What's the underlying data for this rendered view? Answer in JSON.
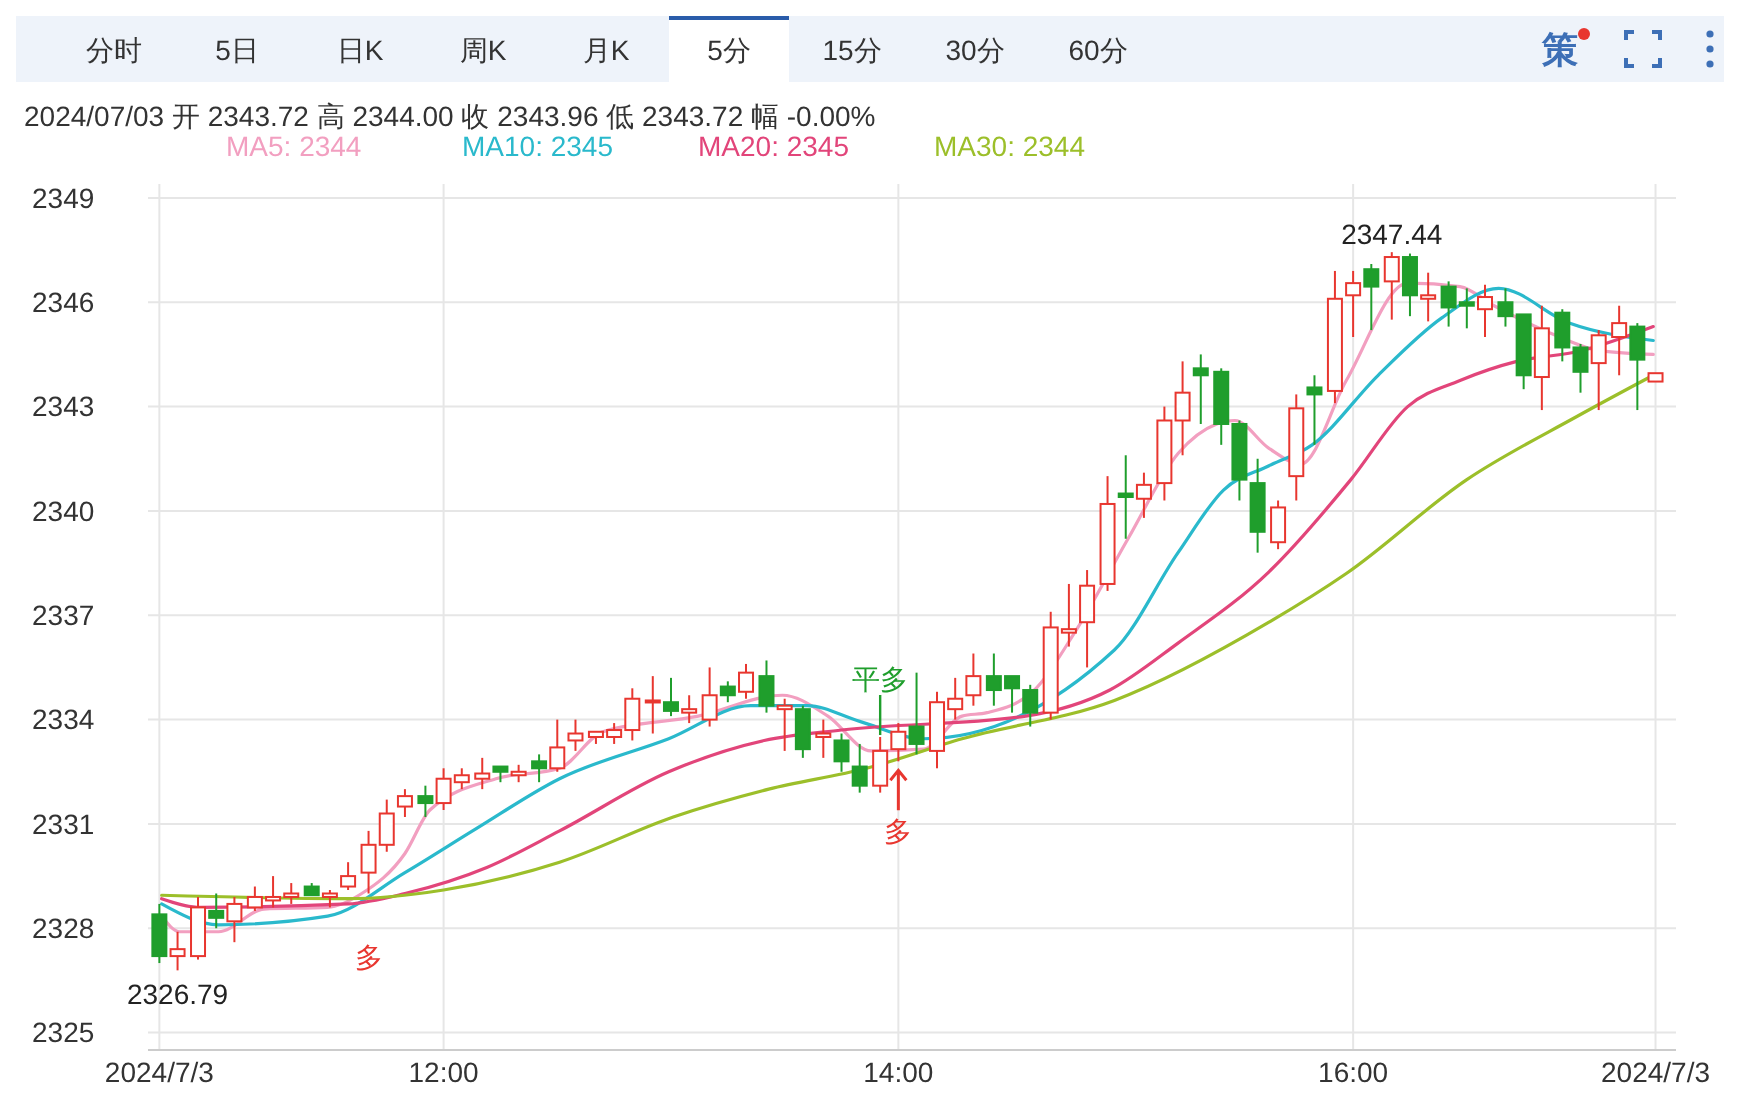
{
  "chart_data": {
    "type": "candlestick",
    "legend": "top left",
    "grid": true,
    "xlim": [
      10.7,
      17.42
    ],
    "ylim": [
      2324.5,
      2349.4
    ],
    "xticks": [
      {
        "value": 10.75,
        "label": "2024/7/3"
      },
      {
        "value": 12,
        "label": "12:00"
      },
      {
        "value": 14,
        "label": "14:00"
      },
      {
        "value": 16,
        "label": "16:00"
      },
      {
        "value": 17.33,
        "label": "2024/7/3"
      }
    ],
    "yticks": [
      2325,
      2328,
      2331,
      2334,
      2337,
      2340,
      2343,
      2346,
      2349
    ],
    "annotations": [
      "分时",
      "5日",
      "日K",
      "周K",
      "月K",
      "5分",
      "15分",
      "30分",
      "60分",
      "策",
      "2024/07/03 开 2343.72 高 2344.00 收 2343.96 低 2343.72 幅 -0.00%",
      {
        "text": "2347.44",
        "x": 16.17,
        "y": 2347.44
      },
      {
        "text": "2326.79",
        "x": 10.83,
        "y": 2326.79
      },
      {
        "text": "多",
        "x": 11.67,
        "y": 2329.0
      },
      {
        "text": "平多",
        "x": 13.92,
        "y": 2333.5
      },
      {
        "text": "多",
        "x": 14.0,
        "y": 2332.6
      }
    ],
    "series": [
      {
        "x": [
          10.75,
          10.83,
          10.92,
          11,
          11.08,
          11.17,
          11.25,
          11.33,
          11.42,
          11.5,
          11.58,
          11.67,
          11.75,
          11.83,
          11.92,
          12,
          12.08,
          12.17,
          12.25,
          12.33,
          12.42,
          12.5,
          12.58,
          12.67,
          12.75,
          12.83,
          12.92,
          13,
          13.08,
          13.17,
          13.25,
          13.33,
          13.42,
          13.5,
          13.58,
          13.67,
          13.75,
          13.83,
          13.92,
          14,
          14.08,
          14.17,
          14.25,
          14.33,
          14.42,
          14.5,
          14.58,
          14.67,
          14.75,
          14.83,
          14.92,
          15,
          15.08,
          15.17,
          15.25,
          15.33,
          15.42,
          15.5,
          15.58,
          15.67,
          15.75,
          15.83,
          15.92,
          16,
          16.08,
          16.17,
          16.25,
          16.33,
          16.42,
          16.5,
          16.58,
          16.67,
          16.75,
          16.83,
          16.92,
          17,
          17.08,
          17.17,
          17.25,
          17.33
        ],
        "ohlc": [
          [
            2328.4,
            2328.7,
            2327.0,
            2327.2
          ],
          [
            2327.2,
            2327.9,
            2326.79,
            2327.4
          ],
          [
            2327.2,
            2328.9,
            2327.1,
            2328.6
          ],
          [
            2328.5,
            2329.0,
            2328.0,
            2328.3
          ],
          [
            2328.2,
            2328.9,
            2327.6,
            2328.7
          ],
          [
            2328.6,
            2329.2,
            2328.5,
            2328.9
          ],
          [
            2328.8,
            2329.5,
            2328.6,
            2328.9
          ],
          [
            2328.9,
            2329.3,
            2328.7,
            2329.0
          ],
          [
            2329.2,
            2329.3,
            2328.9,
            2328.95
          ],
          [
            2328.9,
            2329.1,
            2328.6,
            2329.0
          ],
          [
            2329.2,
            2329.9,
            2329.1,
            2329.5
          ],
          [
            2329.6,
            2330.8,
            2329.0,
            2330.4
          ],
          [
            2330.4,
            2331.7,
            2330.2,
            2331.3
          ],
          [
            2331.5,
            2332.0,
            2331.2,
            2331.8
          ],
          [
            2331.8,
            2332.1,
            2331.2,
            2331.6
          ],
          [
            2331.6,
            2332.6,
            2331.4,
            2332.3
          ],
          [
            2332.2,
            2332.6,
            2332.0,
            2332.4
          ],
          [
            2332.3,
            2332.9,
            2332.0,
            2332.45
          ],
          [
            2332.65,
            2332.7,
            2332.2,
            2332.5
          ],
          [
            2332.4,
            2332.7,
            2332.2,
            2332.5
          ],
          [
            2332.8,
            2333.0,
            2332.2,
            2332.6
          ],
          [
            2332.6,
            2334.0,
            2332.5,
            2333.2
          ],
          [
            2333.4,
            2334.0,
            2333.1,
            2333.6
          ],
          [
            2333.5,
            2333.7,
            2333.3,
            2333.65
          ],
          [
            2333.5,
            2333.9,
            2333.3,
            2333.7
          ],
          [
            2333.7,
            2334.9,
            2333.4,
            2334.6
          ],
          [
            2334.5,
            2335.25,
            2333.6,
            2334.55
          ],
          [
            2334.5,
            2335.2,
            2334.1,
            2334.25
          ],
          [
            2334.2,
            2334.7,
            2333.9,
            2334.3
          ],
          [
            2334.0,
            2335.5,
            2333.8,
            2334.7
          ],
          [
            2334.95,
            2335.1,
            2334.5,
            2334.7
          ],
          [
            2334.8,
            2335.6,
            2334.6,
            2335.35
          ],
          [
            2335.25,
            2335.7,
            2334.2,
            2334.4
          ],
          [
            2334.3,
            2334.6,
            2333.1,
            2334.4
          ],
          [
            2334.3,
            2334.4,
            2332.9,
            2333.15
          ],
          [
            2333.5,
            2334.0,
            2332.9,
            2333.6
          ],
          [
            2333.4,
            2333.6,
            2332.5,
            2332.8
          ],
          [
            2332.65,
            2333.3,
            2331.9,
            2332.1
          ],
          [
            2332.1,
            2333.5,
            2331.9,
            2333.1
          ],
          [
            2333.15,
            2333.9,
            2332.8,
            2333.65
          ],
          [
            2333.8,
            2335.35,
            2333.0,
            2333.3
          ],
          [
            2333.1,
            2334.8,
            2332.6,
            2334.5
          ],
          [
            2334.3,
            2335.2,
            2334.0,
            2334.6
          ],
          [
            2334.7,
            2335.9,
            2334.4,
            2335.25
          ],
          [
            2335.25,
            2335.9,
            2334.4,
            2334.85
          ],
          [
            2335.25,
            2335.3,
            2334.2,
            2334.9
          ],
          [
            2334.85,
            2335.0,
            2333.8,
            2334.2
          ],
          [
            2334.2,
            2337.1,
            2334.0,
            2336.65
          ],
          [
            2336.5,
            2337.9,
            2336.1,
            2336.6
          ],
          [
            2336.8,
            2338.3,
            2335.5,
            2337.85
          ],
          [
            2337.9,
            2341.0,
            2337.7,
            2340.2
          ],
          [
            2340.5,
            2341.6,
            2339.2,
            2340.4
          ],
          [
            2340.35,
            2341.1,
            2339.8,
            2340.75
          ],
          [
            2340.8,
            2343.0,
            2340.3,
            2342.6
          ],
          [
            2342.6,
            2344.3,
            2341.6,
            2343.4
          ],
          [
            2344.1,
            2344.5,
            2342.5,
            2343.9
          ],
          [
            2344.0,
            2344.1,
            2341.9,
            2342.5
          ],
          [
            2342.5,
            2342.6,
            2340.3,
            2340.9
          ],
          [
            2340.8,
            2341.5,
            2338.8,
            2339.4
          ],
          [
            2339.1,
            2340.3,
            2338.9,
            2340.1
          ],
          [
            2341.0,
            2343.35,
            2340.3,
            2342.95
          ],
          [
            2343.55,
            2343.9,
            2341.9,
            2343.35
          ],
          [
            2343.45,
            2346.9,
            2343.1,
            2346.1
          ],
          [
            2346.2,
            2346.9,
            2345.0,
            2346.55
          ],
          [
            2346.95,
            2347.1,
            2345.2,
            2346.45
          ],
          [
            2346.6,
            2347.44,
            2345.5,
            2347.3
          ],
          [
            2347.3,
            2347.4,
            2345.6,
            2346.2
          ],
          [
            2346.1,
            2346.85,
            2345.45,
            2346.2
          ],
          [
            2346.45,
            2346.6,
            2345.3,
            2345.85
          ],
          [
            2346.0,
            2346.4,
            2345.25,
            2345.9
          ],
          [
            2345.8,
            2346.5,
            2345.0,
            2346.15
          ],
          [
            2346.0,
            2346.4,
            2345.3,
            2345.6
          ],
          [
            2345.65,
            2345.7,
            2343.5,
            2343.9
          ],
          [
            2343.85,
            2345.9,
            2342.9,
            2345.25
          ],
          [
            2345.7,
            2345.8,
            2344.3,
            2344.7
          ],
          [
            2344.7,
            2344.8,
            2343.4,
            2344.0
          ],
          [
            2344.25,
            2345.2,
            2342.9,
            2345.05
          ],
          [
            2345.0,
            2345.9,
            2343.9,
            2345.4
          ],
          [
            2345.3,
            2345.4,
            2342.9,
            2344.35
          ],
          [
            2343.72,
            2344.0,
            2343.72,
            2343.96
          ]
        ]
      },
      {
        "type": "line",
        "name": "MA5: 2344",
        "color": "#f29fc0",
        "x": [
          10.76,
          10.84,
          11.01,
          11.21,
          11.49,
          11.64,
          11.83,
          11.94,
          12.23,
          12.51,
          12.7,
          13.12,
          13.49,
          13.69,
          13.88,
          14.11,
          14.28,
          14.39,
          14.59,
          14.78,
          15.01,
          15.23,
          15.4,
          15.48,
          15.63,
          15.77,
          15.97,
          16.24,
          16.47,
          16.62,
          16.89,
          17.09,
          17.32
        ],
        "values": [
          2328.35,
          2327.9,
          2327.9,
          2328.55,
          2328.6,
          2329.0,
          2330.15,
          2331.4,
          2332.3,
          2332.6,
          2333.65,
          2334.1,
          2334.7,
          2334.1,
          2333.1,
          2333.15,
          2334.1,
          2334.2,
          2334.8,
          2336.55,
          2339.2,
          2341.65,
          2342.5,
          2342.6,
          2341.8,
          2341.35,
          2343.75,
          2346.55,
          2346.45,
          2345.9,
          2345.05,
          2344.6,
          2344.5
        ]
      },
      {
        "type": "line",
        "name": "MA10: 2345",
        "color": "#2ab9cc",
        "x": [
          10.76,
          11.01,
          11.49,
          11.83,
          12.14,
          12.51,
          12.99,
          13.35,
          13.6,
          13.83,
          14.11,
          14.95,
          15.23,
          15.43,
          15.63,
          15.82,
          16.11,
          16.39,
          16.64,
          16.95,
          17.32
        ],
        "values": [
          2328.7,
          2328.1,
          2328.35,
          2329.6,
          2330.85,
          2332.3,
          2333.45,
          2334.4,
          2334.4,
          2333.95,
          2333.45,
          2336.0,
          2338.8,
          2340.6,
          2341.3,
          2341.9,
          2343.9,
          2345.55,
          2346.4,
          2345.4,
          2344.9
        ]
      },
      {
        "type": "line",
        "name": "MA20: 2345",
        "color": "#e2457a",
        "x": [
          10.76,
          10.93,
          11.58,
          11.83,
          12.19,
          12.51,
          12.99,
          13.41,
          13.75,
          14.56,
          14.93,
          15.23,
          15.63,
          15.99,
          16.24,
          16.47,
          16.72,
          17.0,
          17.32
        ],
        "values": [
          2328.85,
          2328.6,
          2328.7,
          2329.0,
          2329.75,
          2330.8,
          2332.5,
          2333.4,
          2333.7,
          2334.1,
          2334.85,
          2336.2,
          2338.25,
          2340.9,
          2343.0,
          2343.75,
          2344.3,
          2344.6,
          2345.3
        ]
      },
      {
        "type": "line",
        "name": "MA30: 2344",
        "color": "#9cbf2a",
        "x": [
          10.76,
          11.58,
          12.0,
          12.51,
          13.01,
          13.43,
          13.86,
          14.28,
          14.95,
          15.63,
          15.97,
          16.5,
          16.98,
          17.32
        ],
        "values": [
          2328.95,
          2328.85,
          2329.1,
          2329.9,
          2331.2,
          2332.0,
          2332.6,
          2333.45,
          2334.55,
          2336.8,
          2338.2,
          2340.9,
          2342.7,
          2343.9
        ]
      }
    ]
  }
}
